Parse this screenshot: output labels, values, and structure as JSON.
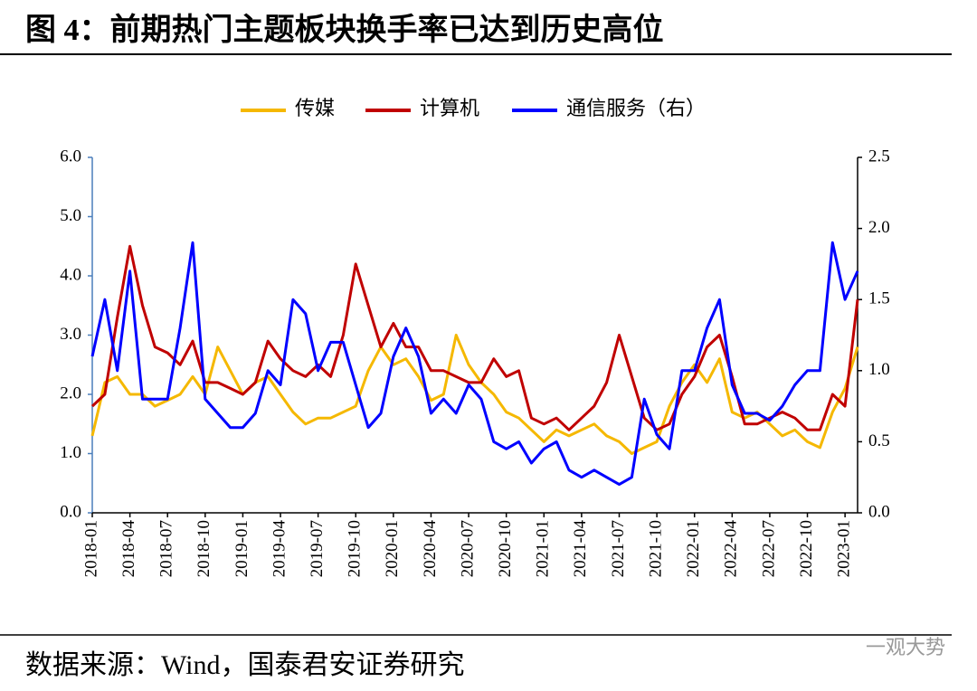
{
  "chart_data": {
    "type": "line",
    "title": "图 4：前期热门主题板块换手率已达到历史高位",
    "source": "数据来源：Wind，国泰君安证券研究",
    "watermark": "一观大势",
    "categories": [
      "2018-01",
      null,
      null,
      "2018-04",
      null,
      null,
      "2018-07",
      null,
      null,
      "2018-10",
      null,
      null,
      "2019-01",
      null,
      null,
      "2019-04",
      null,
      null,
      "2019-07",
      null,
      null,
      "2019-10",
      null,
      null,
      "2020-01",
      null,
      null,
      "2020-04",
      null,
      null,
      "2020-07",
      null,
      null,
      "2020-10",
      null,
      null,
      "2021-01",
      null,
      null,
      "2021-04",
      null,
      null,
      "2021-07",
      null,
      null,
      "2021-10",
      null,
      null,
      "2022-01",
      null,
      null,
      "2022-04",
      null,
      null,
      "2022-07",
      null,
      null,
      "2022-10",
      null,
      null,
      "2023-01",
      null
    ],
    "series": [
      {
        "name": "传媒",
        "color": "#f5b800",
        "axis": "y",
        "values": [
          1.3,
          2.2,
          2.3,
          2.0,
          2.0,
          1.8,
          1.9,
          2.0,
          2.3,
          2.0,
          2.8,
          2.4,
          2.0,
          2.2,
          2.3,
          2.0,
          1.7,
          1.5,
          1.6,
          1.6,
          1.7,
          1.8,
          2.4,
          2.8,
          2.5,
          2.6,
          2.3,
          1.9,
          2.0,
          3.0,
          2.5,
          2.2,
          2.0,
          1.7,
          1.6,
          1.4,
          1.2,
          1.4,
          1.3,
          1.4,
          1.5,
          1.3,
          1.2,
          1.0,
          1.1,
          1.2,
          1.8,
          2.2,
          2.5,
          2.2,
          2.6,
          1.7,
          1.6,
          1.7,
          1.5,
          1.3,
          1.4,
          1.2,
          1.1,
          1.7,
          2.1,
          2.8
        ]
      },
      {
        "name": "计算机",
        "color": "#c00000",
        "axis": "y",
        "values": [
          1.8,
          2.0,
          3.3,
          4.5,
          3.5,
          2.8,
          2.7,
          2.5,
          2.9,
          2.2,
          2.2,
          2.1,
          2.0,
          2.2,
          2.9,
          2.6,
          2.4,
          2.3,
          2.5,
          2.3,
          3.0,
          4.2,
          3.5,
          2.8,
          3.2,
          2.8,
          2.8,
          2.4,
          2.4,
          2.3,
          2.2,
          2.2,
          2.6,
          2.3,
          2.4,
          1.6,
          1.5,
          1.6,
          1.4,
          1.6,
          1.8,
          2.2,
          3.0,
          2.3,
          1.6,
          1.4,
          1.5,
          2.0,
          2.3,
          2.8,
          3.0,
          2.3,
          1.5,
          1.5,
          1.6,
          1.7,
          1.6,
          1.4,
          1.4,
          2.0,
          1.8,
          3.6
        ]
      },
      {
        "name": "通信服务（右）",
        "color": "#0000ff",
        "axis": "y2",
        "values": [
          1.1,
          1.5,
          1.0,
          1.7,
          0.8,
          0.8,
          0.8,
          1.3,
          1.9,
          0.8,
          0.7,
          0.6,
          0.6,
          0.7,
          1.0,
          0.9,
          1.5,
          1.4,
          1.0,
          1.2,
          1.2,
          0.9,
          0.6,
          0.7,
          1.1,
          1.3,
          1.1,
          0.7,
          0.8,
          0.7,
          0.9,
          0.8,
          0.5,
          0.45,
          0.5,
          0.35,
          0.45,
          0.5,
          0.3,
          0.25,
          0.3,
          0.25,
          0.2,
          0.25,
          0.8,
          0.55,
          0.45,
          1.0,
          1.0,
          1.3,
          1.5,
          0.9,
          0.7,
          0.7,
          0.65,
          0.75,
          0.9,
          1.0,
          1.0,
          1.9,
          1.5,
          1.7
        ]
      }
    ],
    "ylim": [
      0,
      6
    ],
    "yticks": [
      {
        "value": 0,
        "label": "0.0"
      },
      {
        "value": 1,
        "label": "1.0"
      },
      {
        "value": 2,
        "label": "2.0"
      },
      {
        "value": 3,
        "label": "3.0"
      },
      {
        "value": 4,
        "label": "4.0"
      },
      {
        "value": 5,
        "label": "5.0"
      },
      {
        "value": 6,
        "label": "6.0"
      }
    ],
    "y2lim": [
      0,
      2.5
    ],
    "y2ticks": [
      {
        "value": 0,
        "label": "0.0"
      },
      0.5,
      {
        "value": 1,
        "label": "1.0"
      },
      1.5,
      {
        "value": 2,
        "label": "2.0"
      },
      2.5
    ],
    "legend": "top",
    "grid": false
  }
}
